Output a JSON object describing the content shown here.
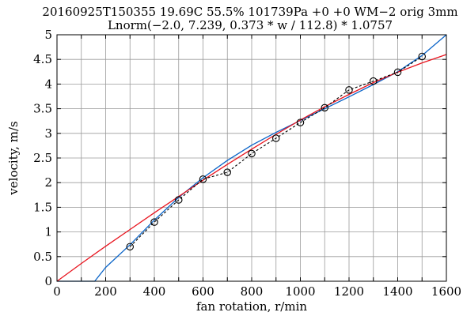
{
  "chart_data": {
    "type": "line",
    "title": "20160925T150355 19.69C 55.5% 101739Pa +0 +0 WM−2 orig 3mm",
    "subtitle": "Lnorm(−2.0, 7.239, 0.373 * w / 112.8) * 1.0757",
    "xlabel": "fan rotation, r/min",
    "ylabel": "velocity, m/s",
    "xlim": [
      0,
      1600
    ],
    "ylim": [
      0,
      5
    ],
    "grid": true,
    "x_ticks": [
      0,
      100,
      200,
      300,
      400,
      500,
      600,
      700,
      800,
      900,
      1000,
      1100,
      1200,
      1300,
      1400,
      1500,
      1600
    ],
    "y_ticks": [
      0,
      0.5,
      1,
      1.5,
      2,
      2.5,
      3,
      3.5,
      4,
      4.5,
      5
    ],
    "x_tick_labels": [
      "0",
      "200",
      "400",
      "600",
      "800",
      "1000",
      "1200",
      "1400",
      "1600"
    ],
    "y_tick_labels": [
      "0",
      "0.5",
      "1",
      "1.5",
      "2",
      "2.5",
      "3",
      "3.5",
      "4",
      "4.5",
      "5"
    ],
    "series": [
      {
        "style": "markers-dashed",
        "color": "#000000",
        "x": [
          300,
          400,
          500,
          600,
          700,
          800,
          900,
          1000,
          1100,
          1200,
          1300,
          1400,
          1500
        ],
        "y": [
          0.7,
          1.2,
          1.65,
          2.07,
          2.21,
          2.59,
          2.9,
          3.22,
          3.52,
          3.88,
          4.06,
          4.24,
          4.56
        ]
      },
      {
        "style": "line",
        "color": "#0a64c8",
        "x": [
          0,
          155,
          200,
          300,
          400,
          500,
          600,
          700,
          800,
          900,
          1000,
          1100,
          1200,
          1300,
          1400,
          1500,
          1600
        ],
        "y": [
          0,
          0,
          0.28,
          0.74,
          1.24,
          1.7,
          2.1,
          2.45,
          2.76,
          3.02,
          3.26,
          3.5,
          3.74,
          3.99,
          4.25,
          4.58,
          5.0
        ]
      },
      {
        "style": "line",
        "color": "#e8141e",
        "x": [
          0,
          100,
          200,
          300,
          400,
          500,
          600,
          700,
          800,
          900,
          1000,
          1100,
          1200,
          1300,
          1400,
          1500,
          1600
        ],
        "y": [
          0,
          0.36,
          0.71,
          1.05,
          1.39,
          1.72,
          2.05,
          2.37,
          2.68,
          2.98,
          3.27,
          3.54,
          3.79,
          4.03,
          4.24,
          4.43,
          4.6
        ]
      }
    ]
  }
}
